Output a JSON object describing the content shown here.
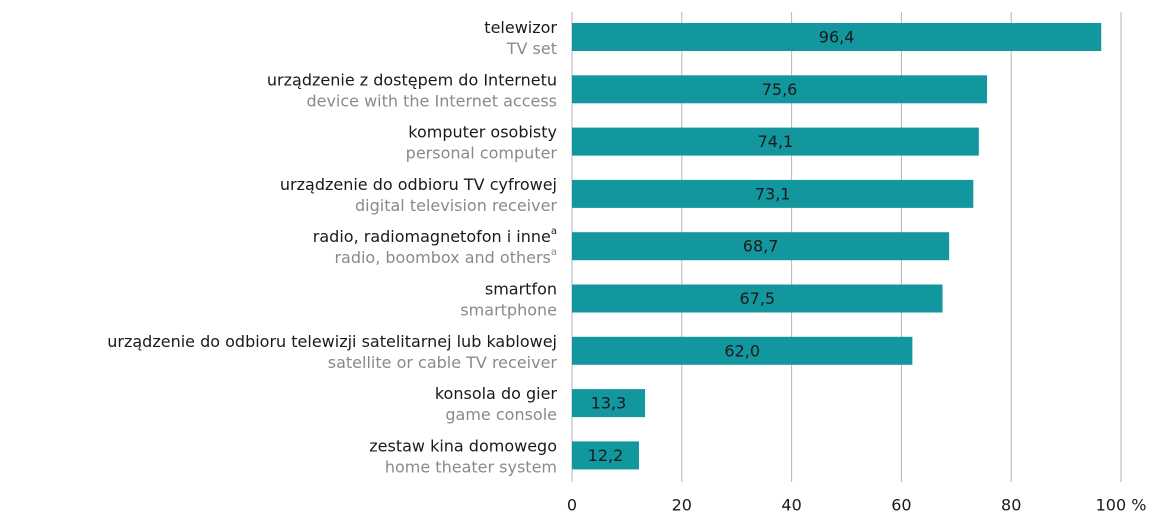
{
  "chart_data": {
    "type": "barh",
    "categories": [
      "telewizor",
      "urządzenie z dostępem do Internetu",
      "komputer osobisty",
      "urządzenie do odbioru TV cyfrowej",
      "radio, radiomagnetofon i inne",
      "smartfon",
      "urządzenie do odbioru telewizji satelitarnej lub kablowej",
      "konsola do gier",
      "zestaw kina domowego"
    ],
    "categories_en": [
      "TV set",
      "device with the Internet access",
      "personal computer",
      "digital television receiver",
      "radio, boombox and others",
      "smartphone",
      "satellite or cable TV receiver",
      "game console",
      "home theater system"
    ],
    "category_notes": [
      null,
      null,
      null,
      null,
      "a",
      null,
      null,
      null,
      null
    ],
    "values": [
      96.4,
      75.6,
      74.1,
      73.1,
      68.7,
      67.5,
      62.0,
      13.3,
      12.2
    ],
    "value_labels": [
      "96,4",
      "75,6",
      "74,1",
      "73,1",
      "68,7",
      "67,5",
      "62,0",
      "13,3",
      "12,2"
    ],
    "color": "#12979f",
    "xlim": [
      0,
      100
    ],
    "xticks": [
      0,
      20,
      40,
      60,
      80,
      {
        "value": 100,
        "label": "100 %"
      }
    ],
    "grid": true
  }
}
